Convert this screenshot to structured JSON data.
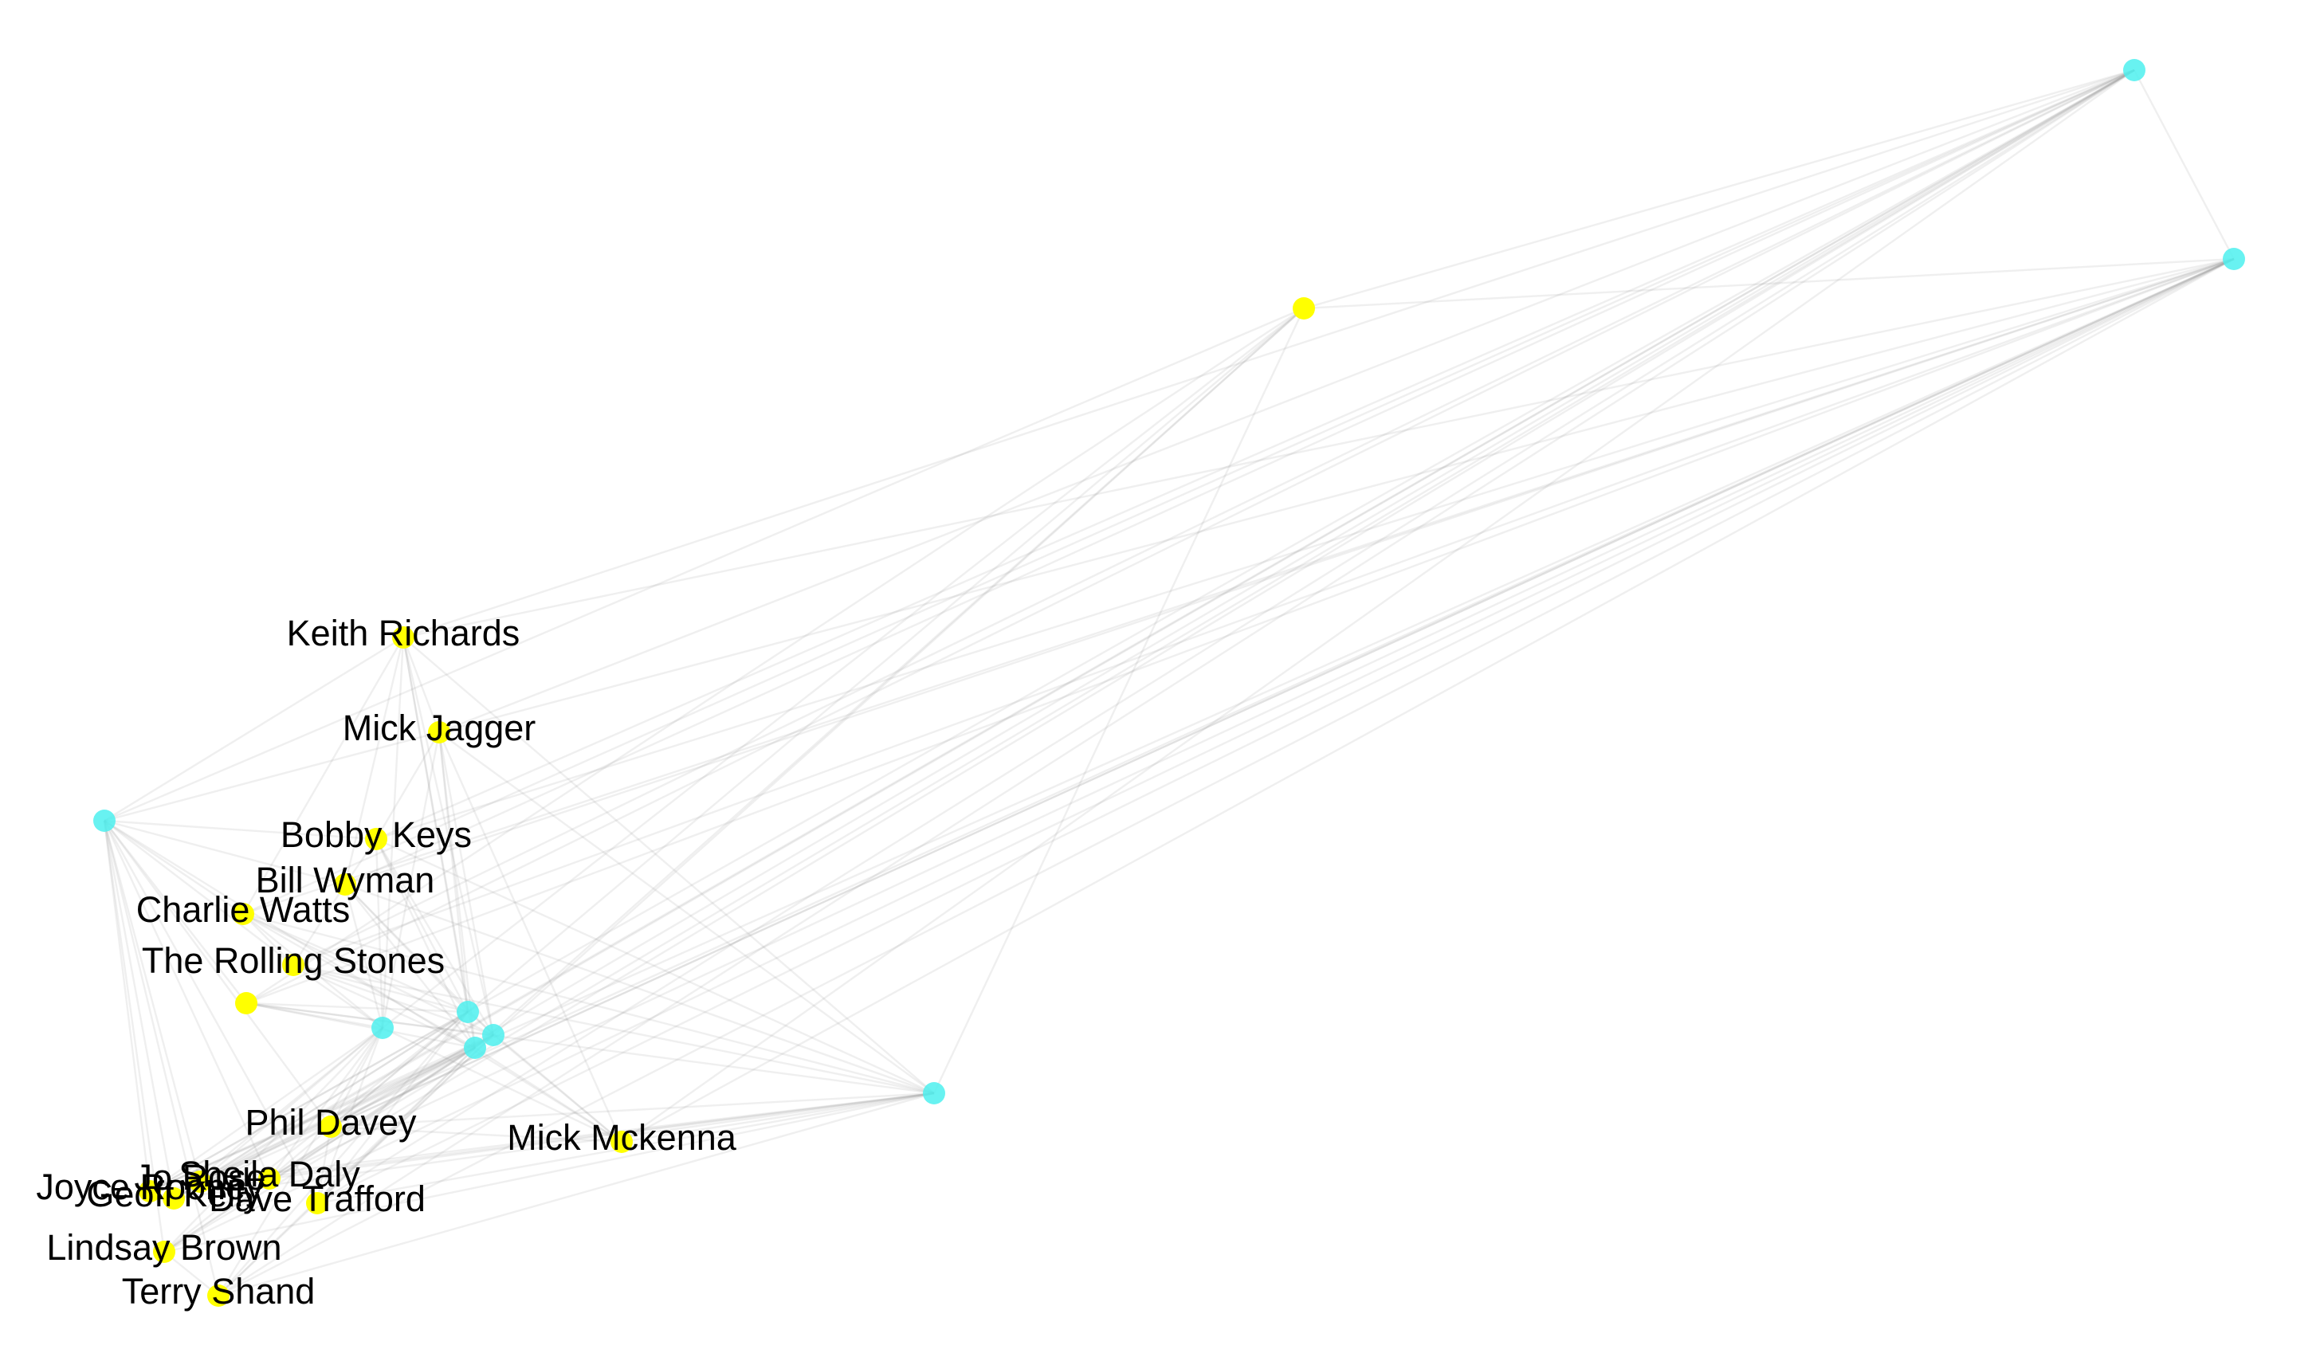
{
  "diagram": {
    "type": "network-graph",
    "colors": {
      "person_node": "#ffff00",
      "hub_node": "#4df0ee",
      "edge": "#9a9a9a",
      "label_text": "#000000",
      "background": "#ffffff"
    },
    "labels": {
      "keith": "Keith Richards",
      "mick_j": "Mick Jagger",
      "bobby": "Bobby Keys",
      "bill": "Bill Wyman",
      "charlie": "Charlie Watts",
      "stones": "The Rolling Stones",
      "phil": "Phil Davey",
      "mick_m": "Mick Mckenna",
      "sheila": "Sheila Daly",
      "jo": "Jo Rose",
      "joyce": "Joyce Rooney",
      "geoff": "Geoff Kelly",
      "dave": "Dave Trafford",
      "lindsay": "Lindsay Brown",
      "terry": "Terry Shand"
    },
    "nodes": [
      {
        "id": "keith",
        "kind": "person",
        "label_key": "keith"
      },
      {
        "id": "mick_j",
        "kind": "person",
        "label_key": "mick_j"
      },
      {
        "id": "bobby",
        "kind": "person",
        "label_key": "bobby"
      },
      {
        "id": "bill",
        "kind": "person",
        "label_key": "bill"
      },
      {
        "id": "charlie",
        "kind": "person",
        "label_key": "charlie"
      },
      {
        "id": "stones",
        "kind": "person",
        "label_key": "stones"
      },
      {
        "id": "phil",
        "kind": "person",
        "label_key": "phil"
      },
      {
        "id": "mick_m",
        "kind": "person",
        "label_key": "mick_m"
      },
      {
        "id": "sheila",
        "kind": "person",
        "label_key": "sheila"
      },
      {
        "id": "jo",
        "kind": "person",
        "label_key": "jo"
      },
      {
        "id": "joyce",
        "kind": "person",
        "label_key": "joyce"
      },
      {
        "id": "geoff",
        "kind": "person",
        "label_key": "geoff"
      },
      {
        "id": "dave",
        "kind": "person",
        "label_key": "dave"
      },
      {
        "id": "lindsay",
        "kind": "person",
        "label_key": "lindsay"
      },
      {
        "id": "terry",
        "kind": "person",
        "label_key": "terry"
      },
      {
        "id": "p_unl",
        "kind": "person",
        "label_key": null
      },
      {
        "id": "p_low",
        "kind": "person",
        "label_key": null
      },
      {
        "id": "h_tr",
        "kind": "hub",
        "label_key": null
      },
      {
        "id": "h_r",
        "kind": "hub",
        "label_key": null
      },
      {
        "id": "h_l",
        "kind": "hub",
        "label_key": null
      },
      {
        "id": "h_lr",
        "kind": "hub",
        "label_key": null
      },
      {
        "id": "h_c1",
        "kind": "hub",
        "label_key": null
      },
      {
        "id": "h_c2",
        "kind": "hub",
        "label_key": null
      },
      {
        "id": "h_c3",
        "kind": "hub",
        "label_key": null
      },
      {
        "id": "h_c4",
        "kind": "hub",
        "label_key": null
      }
    ]
  }
}
